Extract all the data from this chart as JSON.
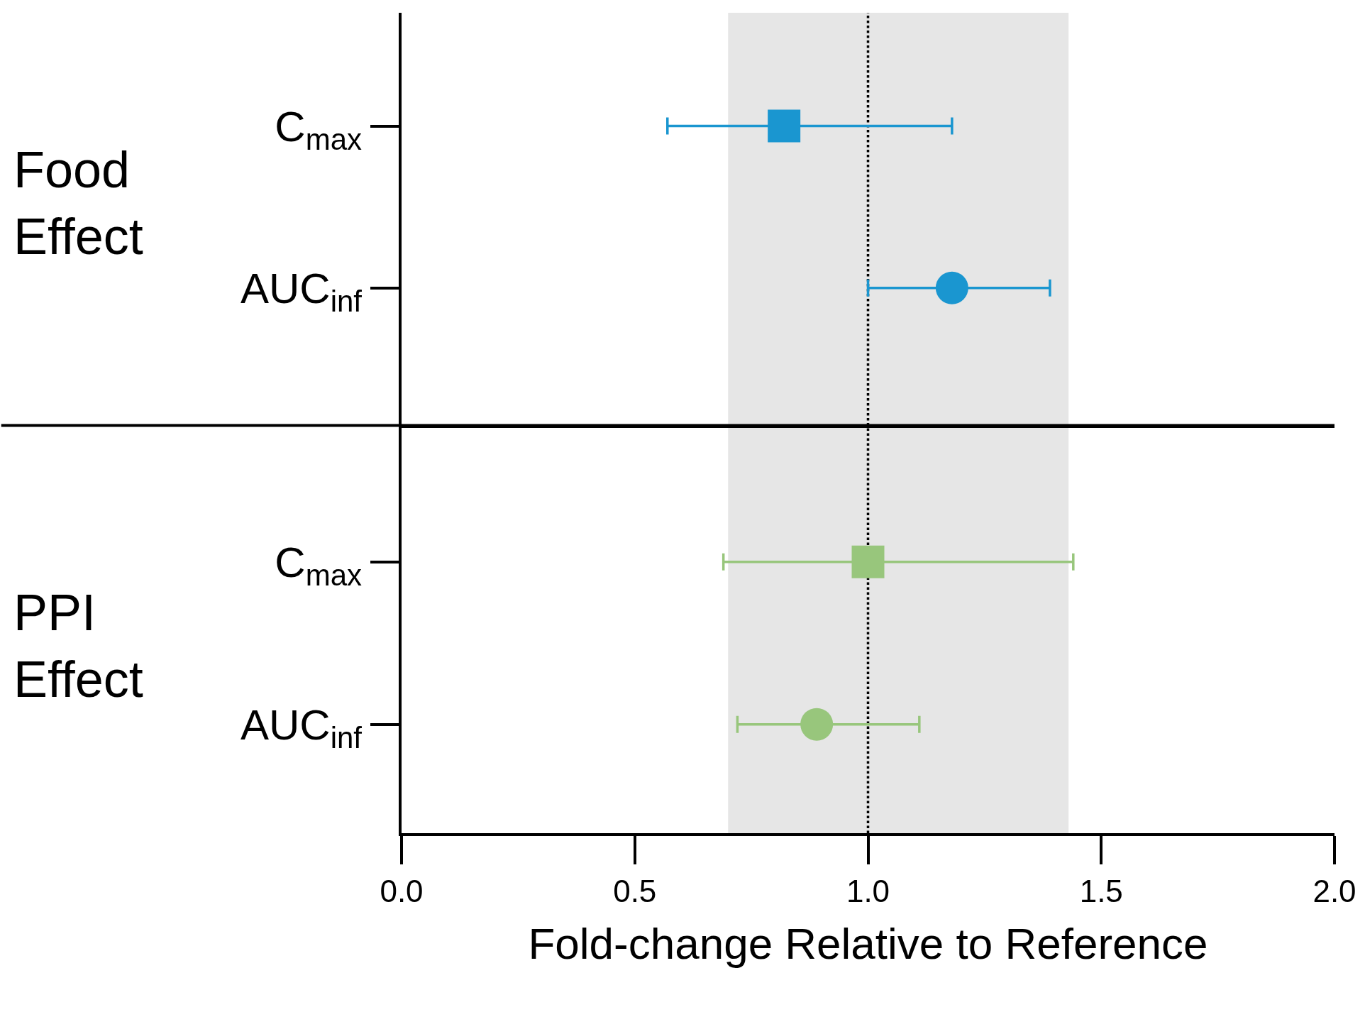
{
  "chart_data": [
    {
      "type": "scatter",
      "orientation": "horizontal",
      "ylabel": "Food Effect",
      "categories": [
        "C$_{max}$",
        "AUC$_{inf}$"
      ],
      "xlim": [
        0,
        2
      ],
      "tick_labels": "y",
      "series": [
        {
          "color": "#1a96d0",
          "marker": "square",
          "values": [
            0.82,
            null
          ],
          "errors": [
            [
              0.57,
              1.18
            ],
            null
          ]
        },
        {
          "color": "#1a96d0",
          "marker": "circle",
          "values": [
            null,
            1.18
          ],
          "errors": [
            null,
            [
              1.0,
              1.39
            ]
          ]
        }
      ],
      "bands": [
        {
          "axis": "x",
          "from": 0.7,
          "to": 1.43,
          "color": "#e6e6e6"
        }
      ],
      "ref_lines": [
        {
          "axis": "x",
          "value": 1.0,
          "color": "#000000",
          "line_style": "dotted"
        }
      ]
    },
    {
      "type": "scatter",
      "orientation": "horizontal",
      "ylabel": "PPI Effect",
      "xlabel": "Fold-change Relative to Reference",
      "categories": [
        "C$_{max}$",
        "AUC$_{inf}$"
      ],
      "xlim": [
        0,
        2
      ],
      "xticks": [
        {
          "value": 0,
          "label": "0.0"
        },
        0.5,
        {
          "value": 1,
          "label": "1.0"
        },
        1.5,
        {
          "value": 2,
          "label": "2.0"
        }
      ],
      "series": [
        {
          "color": "#98c67c",
          "marker": "square",
          "values": [
            1.0,
            null
          ],
          "errors": [
            [
              0.69,
              1.44
            ],
            null
          ]
        },
        {
          "color": "#98c67c",
          "marker": "circle",
          "values": [
            null,
            0.89
          ],
          "errors": [
            null,
            [
              0.72,
              1.11
            ]
          ]
        }
      ],
      "bands": [
        {
          "axis": "x",
          "from": 0.7,
          "to": 1.43,
          "color": "#e6e6e6"
        }
      ],
      "ref_lines": [
        {
          "axis": "x",
          "value": 1.0,
          "color": "#000000",
          "line_style": "dotted"
        }
      ]
    }
  ]
}
